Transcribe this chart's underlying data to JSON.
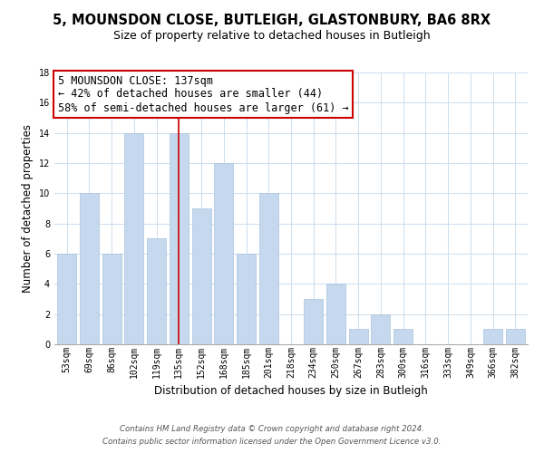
{
  "title": "5, MOUNSDON CLOSE, BUTLEIGH, GLASTONBURY, BA6 8RX",
  "subtitle": "Size of property relative to detached houses in Butleigh",
  "xlabel": "Distribution of detached houses by size in Butleigh",
  "ylabel": "Number of detached properties",
  "bar_labels": [
    "53sqm",
    "69sqm",
    "86sqm",
    "102sqm",
    "119sqm",
    "135sqm",
    "152sqm",
    "168sqm",
    "185sqm",
    "201sqm",
    "218sqm",
    "234sqm",
    "250sqm",
    "267sqm",
    "283sqm",
    "300sqm",
    "316sqm",
    "333sqm",
    "349sqm",
    "366sqm",
    "382sqm"
  ],
  "bar_values": [
    6,
    10,
    6,
    14,
    7,
    14,
    9,
    12,
    6,
    10,
    0,
    3,
    4,
    1,
    2,
    1,
    0,
    0,
    0,
    1,
    1
  ],
  "bar_color": "#c5d8ed",
  "bar_edge_color": "#a8c4e0",
  "highlight_index": 5,
  "highlight_line_color": "#cc0000",
  "annotation_title": "5 MOUNSDON CLOSE: 137sqm",
  "annotation_line1": "← 42% of detached houses are smaller (44)",
  "annotation_line2": "58% of semi-detached houses are larger (61) →",
  "annotation_box_color": "#ffffff",
  "annotation_box_edge_color": "#cc0000",
  "ylim": [
    0,
    18
  ],
  "yticks": [
    0,
    2,
    4,
    6,
    8,
    10,
    12,
    14,
    16,
    18
  ],
  "footnote1": "Contains HM Land Registry data © Crown copyright and database right 2024.",
  "footnote2": "Contains public sector information licensed under the Open Government Licence v3.0.",
  "background_color": "#ffffff",
  "grid_color": "#ccddee",
  "title_fontsize": 10.5,
  "subtitle_fontsize": 9,
  "axis_label_fontsize": 8.5,
  "tick_fontsize": 7,
  "annotation_fontsize": 8.5,
  "footnote_fontsize": 6.2
}
